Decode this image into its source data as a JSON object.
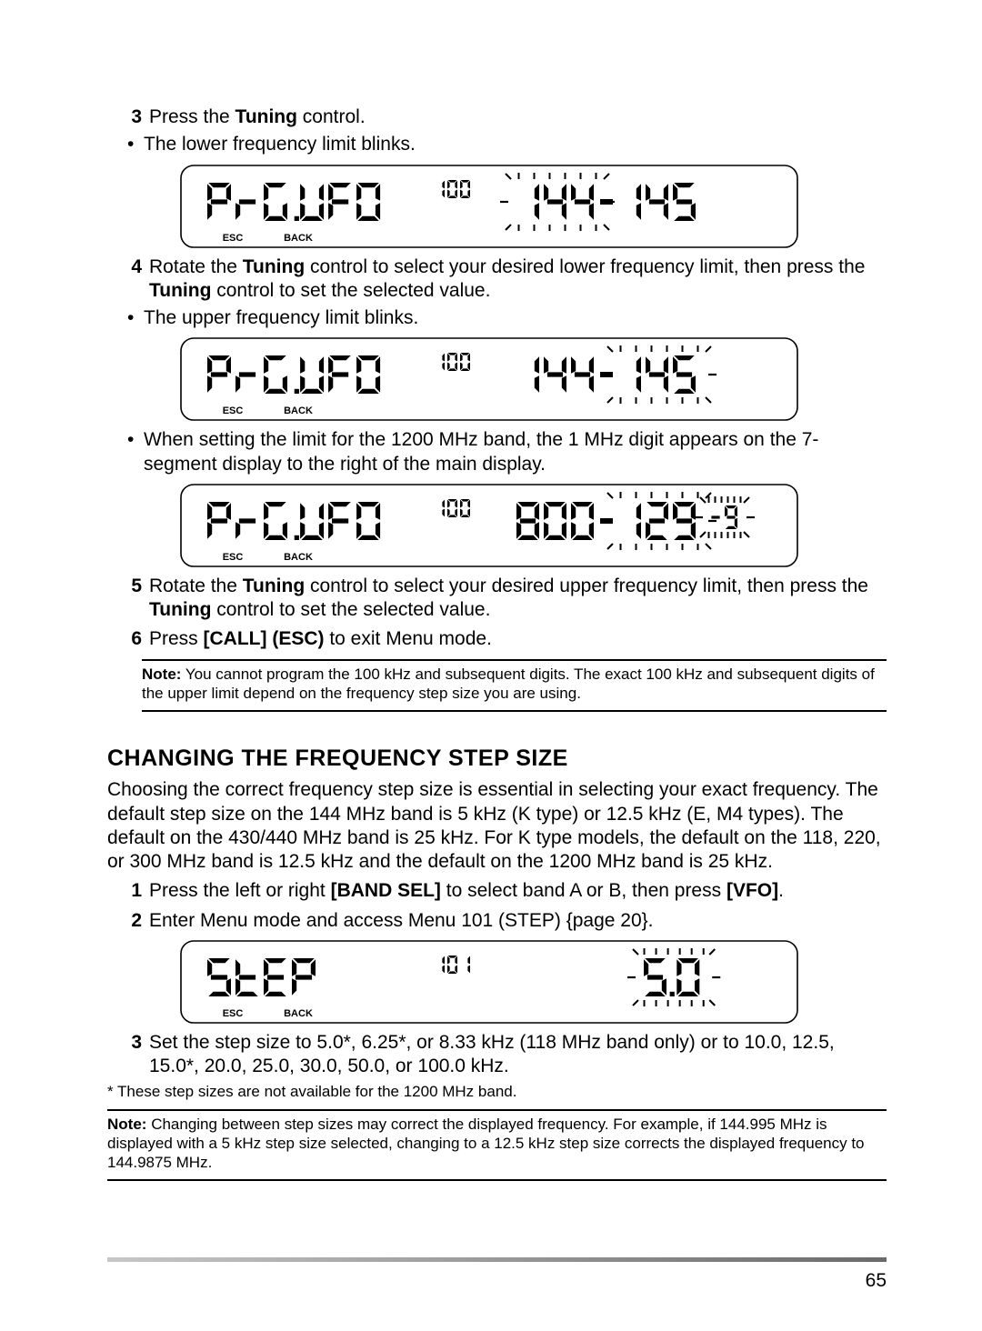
{
  "steps_top": [
    {
      "num": "3",
      "html": "Press the <b>Tuning</b> control."
    },
    {
      "bullet": "The lower frequency limit blinks."
    }
  ],
  "lcd1": {
    "menu_name": "PRG.VFO",
    "menu_num": "100",
    "value_left": "144",
    "value_right": "145",
    "ticks_around": "left",
    "esc": "ESC",
    "back": "BACK"
  },
  "steps_mid1": [
    {
      "num": "4",
      "html": "Rotate the <b>Tuning</b> control to select your desired lower frequency limit, then press the <b>Tuning</b> control to set the selected value."
    },
    {
      "bullet": "The upper frequency limit blinks."
    }
  ],
  "lcd2": {
    "menu_name": "PRG.VFO",
    "menu_num": "100",
    "value_left": "144",
    "value_right": "145",
    "ticks_around": "right",
    "esc": "ESC",
    "back": "BACK"
  },
  "steps_mid2": [
    {
      "bullet": "When setting the limit for the 1200 MHz band, the 1 MHz digit appears on the 7-segment display to the right of the main display."
    }
  ],
  "lcd3": {
    "menu_name": "PRG.VFO",
    "menu_num": "100",
    "value_left": "800",
    "value_right": "129",
    "extra_right": "-9",
    "ticks_around": "right",
    "extra_ticks_around": true,
    "esc": "ESC",
    "back": "BACK"
  },
  "steps_bottom": [
    {
      "num": "5",
      "html": "Rotate the <b>Tuning</b> control to select your desired upper frequency limit, then press the <b>Tuning</b> control to set the selected value."
    },
    {
      "num": "6",
      "html": "Press <b>[CALL] (ESC)</b> to exit Menu mode."
    }
  ],
  "note1": "Note:  You cannot program the 100 kHz and subsequent digits.  The exact 100 kHz and subsequent digits of the upper limit depend on the frequency step size you are using.",
  "section_heading": "CHANGING THE FREQUENCY STEP SIZE",
  "section_para": "Choosing the correct frequency step size is essential in selecting your exact frequency.  The default step size on the 144 MHz band is 5 kHz (K type) or 12.5 kHz (E, M4 types).  The default on the 430/440 MHz band is 25 kHz.  For K type models, the default on the 118, 220, or 300 MHz band is 12.5 kHz and the default on the 1200 MHz band is 25 kHz.",
  "steps_section": [
    {
      "num": "1",
      "html": "Press the left or right <b>[BAND SEL]</b> to select band A or B, then press <b>[VFO]</b>."
    },
    {
      "num": "2",
      "html": "Enter Menu mode and access Menu 101 (STEP) {page 20}."
    }
  ],
  "lcd4": {
    "menu_name": "STEP",
    "menu_num": "101",
    "value_center": "5.0",
    "ticks_around": "center",
    "esc": "ESC",
    "back": "BACK"
  },
  "steps_after_lcd4": [
    {
      "num": "3",
      "html": "Set the step size to 5.0*, 6.25*, or 8.33 kHz (118 MHz band only) or to 10.0, 12.5, 15.0*, 20.0, 25.0, 30.0, 50.0, or 100.0 kHz."
    }
  ],
  "footnote": "* These step sizes are not available for the 1200 MHz band.",
  "note2": "Note:  Changing between step sizes may correct the displayed frequency.  For example, if 144.995 MHz is displayed with a 5 kHz step size selected, changing to a 12.5 kHz step size corrects the displayed frequency to 144.9875 MHz.",
  "page_number": "65",
  "style": {
    "lcd_border": "#000000",
    "lcd_bg": "#ffffff",
    "font_color": "#000000",
    "lcd_width": 680,
    "lcd_height": 92
  }
}
